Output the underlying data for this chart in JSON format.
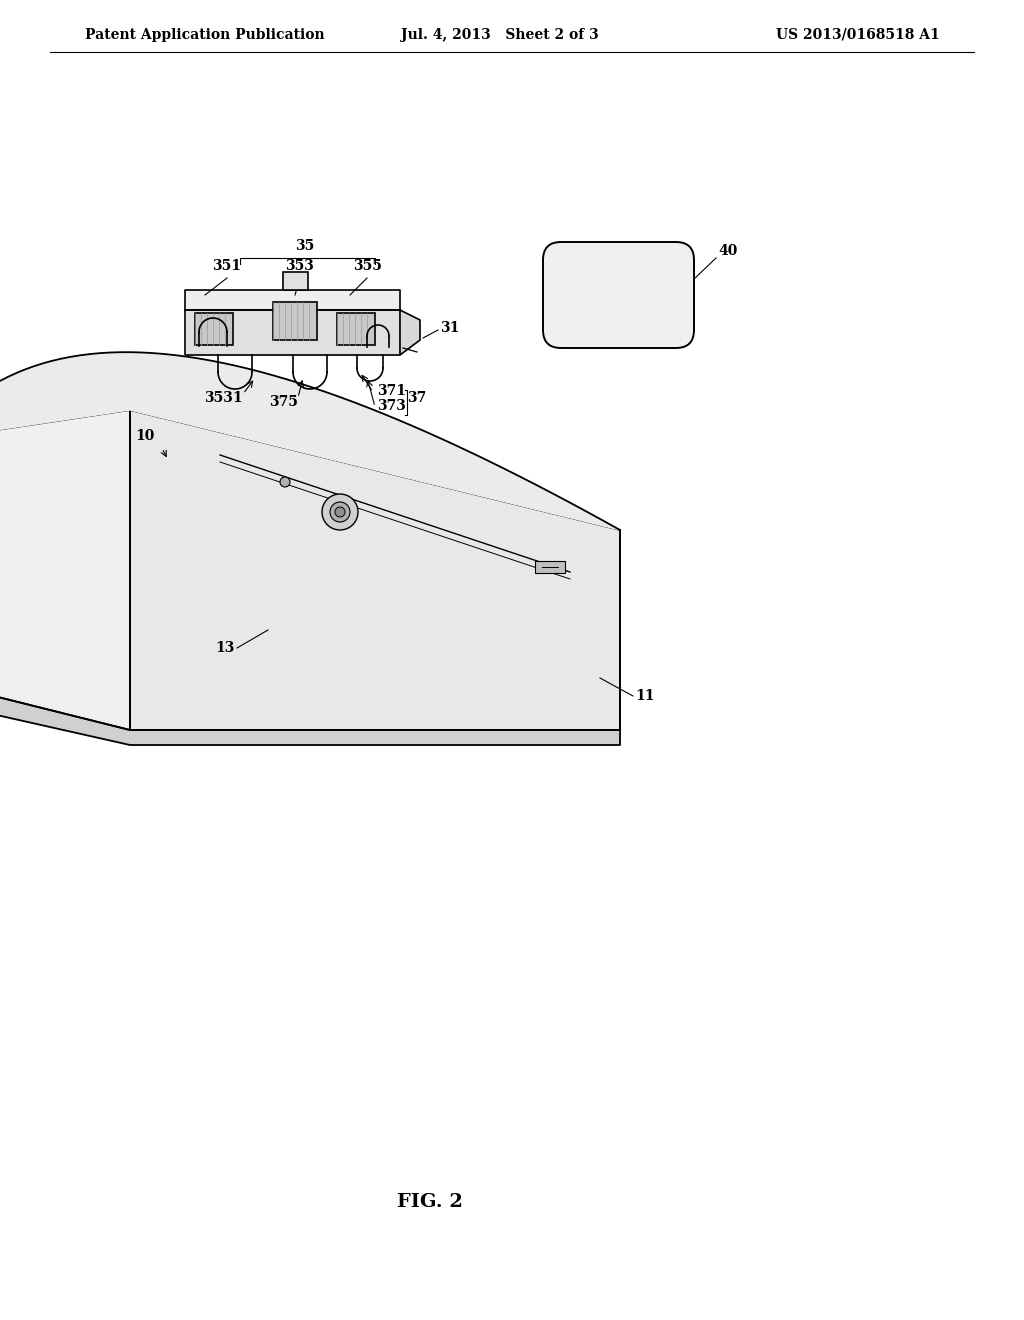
{
  "background_color": "#ffffff",
  "header_left": "Patent Application Publication",
  "header_center": "Jul. 4, 2013   Sheet 2 of 3",
  "header_right": "US 2013/0168518 A1",
  "figure_label": "FIG. 2",
  "text_color": "#000000",
  "line_color": "#000000",
  "header_fontsize": 10,
  "label_fontsize": 11,
  "fig_label_fontsize": 14
}
